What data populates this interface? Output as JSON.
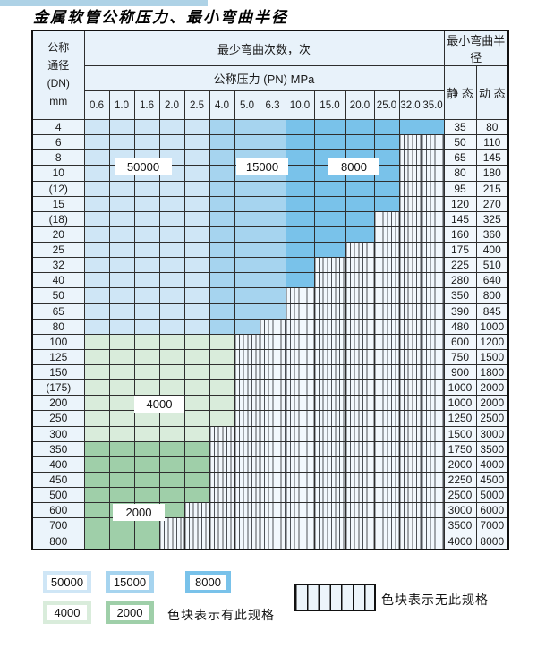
{
  "page": {
    "title": "金属软管公称压力、最小弯曲半径"
  },
  "table": {
    "dn_header_lines": [
      "公称",
      "通径",
      "(DN)",
      "mm"
    ],
    "bend_header": "最少弯曲次数，次",
    "pressure_header": "公称压力 (PN) MPa",
    "radius_header": "最小弯曲半径",
    "static_header": "静 态",
    "dynamic_header": "动 态",
    "pressures": [
      "0.6",
      "1.0",
      "1.6",
      "2.0",
      "2.5",
      "4.0",
      "5.0",
      "6.3",
      "10.0",
      "15.0",
      "20.0",
      "25.0",
      "32.0",
      "35.0"
    ],
    "rows": [
      {
        "dn": "4",
        "max": 14,
        "static": "35",
        "dynamic": "80"
      },
      {
        "dn": "6",
        "max": 12,
        "static": "50",
        "dynamic": "110"
      },
      {
        "dn": "8",
        "max": 12,
        "static": "65",
        "dynamic": "145"
      },
      {
        "dn": "10",
        "max": 12,
        "static": "80",
        "dynamic": "180"
      },
      {
        "dn": "(12)",
        "max": 12,
        "static": "95",
        "dynamic": "215"
      },
      {
        "dn": "15",
        "max": 12,
        "static": "120",
        "dynamic": "270"
      },
      {
        "dn": "(18)",
        "max": 11,
        "static": "145",
        "dynamic": "325"
      },
      {
        "dn": "20",
        "max": 11,
        "static": "160",
        "dynamic": "360"
      },
      {
        "dn": "25",
        "max": 10,
        "static": "175",
        "dynamic": "400"
      },
      {
        "dn": "32",
        "max": 9,
        "static": "225",
        "dynamic": "510"
      },
      {
        "dn": "40",
        "max": 9,
        "static": "280",
        "dynamic": "640"
      },
      {
        "dn": "50",
        "max": 8,
        "static": "350",
        "dynamic": "800"
      },
      {
        "dn": "65",
        "max": 8,
        "static": "390",
        "dynamic": "845"
      },
      {
        "dn": "80",
        "max": 7,
        "static": "480",
        "dynamic": "1000"
      },
      {
        "dn": "100",
        "max": 6,
        "static": "600",
        "dynamic": "1200"
      },
      {
        "dn": "125",
        "max": 6,
        "static": "750",
        "dynamic": "1500"
      },
      {
        "dn": "150",
        "max": 6,
        "static": "900",
        "dynamic": "1800"
      },
      {
        "dn": "(175)",
        "max": 6,
        "static": "1000",
        "dynamic": "2000"
      },
      {
        "dn": "200",
        "max": 6,
        "static": "1000",
        "dynamic": "2000"
      },
      {
        "dn": "250",
        "max": 6,
        "static": "1250",
        "dynamic": "2500"
      },
      {
        "dn": "300",
        "max": 5,
        "static": "1500",
        "dynamic": "3000"
      },
      {
        "dn": "350",
        "max": 5,
        "static": "1750",
        "dynamic": "3500"
      },
      {
        "dn": "400",
        "max": 5,
        "static": "2000",
        "dynamic": "4000"
      },
      {
        "dn": "450",
        "max": 5,
        "static": "2250",
        "dynamic": "4500"
      },
      {
        "dn": "500",
        "max": 5,
        "static": "2500",
        "dynamic": "5000"
      },
      {
        "dn": "600",
        "max": 4,
        "static": "3000",
        "dynamic": "6000"
      },
      {
        "dn": "700",
        "max": 3,
        "static": "3500",
        "dynamic": "7000"
      },
      {
        "dn": "800",
        "max": 3,
        "static": "4000",
        "dynamic": "8000"
      }
    ]
  },
  "zones": {
    "blue_rows_from": 0,
    "blue_rows_to": 13,
    "blue_by_column": [
      {
        "from_col": 0,
        "to_col": 4,
        "cycles": "50000",
        "color": "#cfe6f6"
      },
      {
        "from_col": 5,
        "to_col": 7,
        "cycles": "15000",
        "color": "#a6d4ef"
      },
      {
        "from_col": 8,
        "to_col": 13,
        "cycles": "8000",
        "color": "#79c2ea"
      }
    ],
    "green_by_row": [
      {
        "from_row": 14,
        "to_row": 20,
        "cycles": "4000",
        "color": "#d9ecdb"
      },
      {
        "from_row": 21,
        "to_row": 27,
        "cycles": "2000",
        "color": "#9fcfa9"
      }
    ]
  },
  "overlay_labels": {
    "b50000": "50000",
    "b15000": "15000",
    "b8000": "8000",
    "g4000": "4000",
    "g2000": "2000"
  },
  "legend": {
    "row1": [
      {
        "value": "50000",
        "color": "#cfe6f6"
      },
      {
        "value": "15000",
        "color": "#a6d4ef"
      },
      {
        "value": "8000",
        "color": "#79c2ea"
      }
    ],
    "row2": [
      {
        "value": "4000",
        "color": "#d9ecdb"
      },
      {
        "value": "2000",
        "color": "#9fcfa9"
      }
    ],
    "available_note": "色块表示有此规格",
    "unavailable_note": "色块表示无此规格"
  }
}
